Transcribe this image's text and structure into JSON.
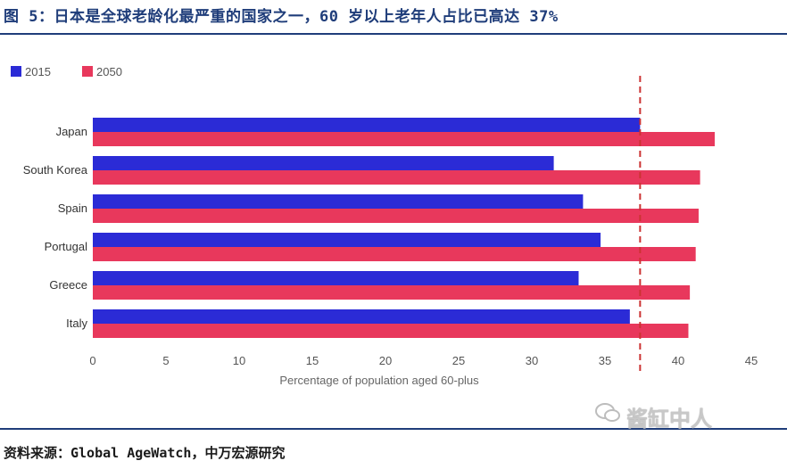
{
  "header": {
    "title": "图 5：日本是全球老龄化最严重的国家之一，60 岁以上老年人占比已高达 37%"
  },
  "footer": {
    "source": "资料来源：Global AgeWatch，中万宏源研究",
    "watermark": "酱缸中人"
  },
  "colors": {
    "series_2015": "#2b2bd6",
    "series_2050": "#e8385c",
    "reference_line": "#cc3333",
    "rule": "#1f3d7a"
  },
  "chart_data": {
    "type": "bar",
    "orientation": "horizontal",
    "categories": [
      "Japan",
      "South Korea",
      "Spain",
      "Portugal",
      "Greece",
      "Italy"
    ],
    "series": [
      {
        "name": "2015",
        "values": [
          37.4,
          31.5,
          33.5,
          34.7,
          33.2,
          36.7
        ]
      },
      {
        "name": "2050",
        "values": [
          42.5,
          41.5,
          41.4,
          41.2,
          40.8,
          40.7
        ]
      }
    ],
    "xlabel": "Percentage of population aged 60-plus",
    "ylabel": "",
    "xlim": [
      0,
      45
    ],
    "xticks": [
      0,
      5,
      10,
      15,
      20,
      25,
      30,
      35,
      40,
      45
    ],
    "reference_line": 37.4,
    "grid": false,
    "legend_position": "top-left"
  }
}
